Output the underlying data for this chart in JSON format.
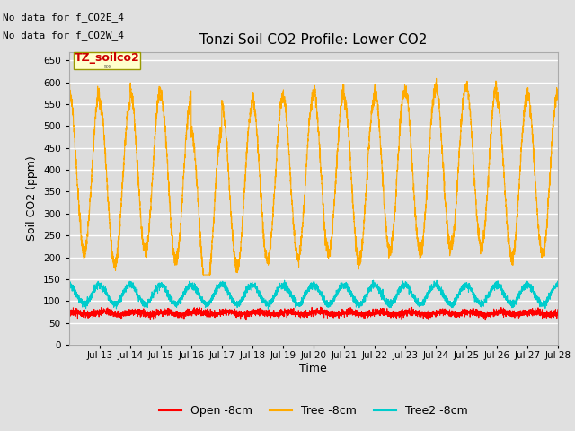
{
  "title": "Tonzi Soil CO2 Profile: Lower CO2",
  "ylabel": "Soil CO2 (ppm)",
  "xlabel": "Time",
  "ylim": [
    0,
    670
  ],
  "yticks": [
    0,
    50,
    100,
    150,
    200,
    250,
    300,
    350,
    400,
    450,
    500,
    550,
    600,
    650
  ],
  "annotation_text1": "No data for f_CO2E_4",
  "annotation_text2": "No data for f_CO2W_4",
  "legend_label_text": "TZ_soilco2",
  "legend_labels": [
    "Open -8cm",
    "Tree -8cm",
    "Tree2 -8cm"
  ],
  "open_color": "#ff0000",
  "tree_color": "#ffaa00",
  "tree2_color": "#00cccc",
  "bg_color": "#e0e0e0",
  "plot_bg_color": "#dcdcdc",
  "grid_color": "#ffffff",
  "n_days": 16,
  "day_start": 12,
  "samples_per_day": 288,
  "open_mean": 72,
  "open_noise": 4,
  "tree_base": 390,
  "tree_amp": 185,
  "tree2_base": 115,
  "tree2_amp": 22
}
